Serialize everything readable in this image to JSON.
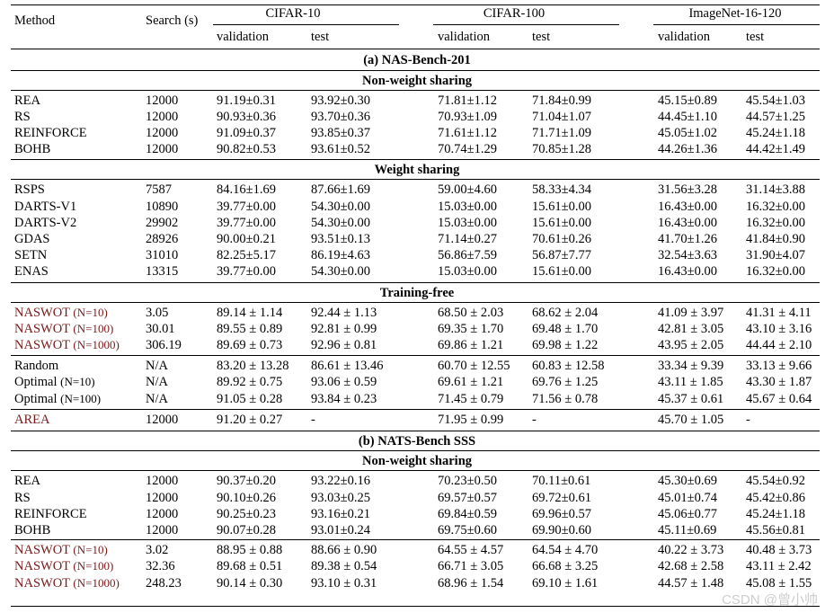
{
  "header": {
    "method": "Method",
    "search": "Search (s)",
    "datasets": [
      "CIFAR-10",
      "CIFAR-100",
      "ImageNet-16-120"
    ],
    "sub": [
      "validation",
      "test",
      "validation",
      "test",
      "validation",
      "test"
    ]
  },
  "sections": [
    {
      "title": "(a) NAS-Bench-201",
      "groups": [
        {
          "title": "Non-weight sharing",
          "rows": [
            {
              "method": "REA",
              "search": "12000",
              "vals": [
                "91.19±0.31",
                "93.92±0.30",
                "71.81±1.12",
                "71.84±0.99",
                "45.15±0.89",
                "45.54±1.03"
              ]
            },
            {
              "method": "RS",
              "search": "12000",
              "vals": [
                "90.93±0.36",
                "93.70±0.36",
                "70.93±1.09",
                "71.04±1.07",
                "44.45±1.10",
                "44.57±1.25"
              ]
            },
            {
              "method": "REINFORCE",
              "search": "12000",
              "vals": [
                "91.09±0.37",
                "93.85±0.37",
                "71.61±1.12",
                "71.71±1.09",
                "45.05±1.02",
                "45.24±1.18"
              ]
            },
            {
              "method": "BOHB",
              "search": "12000",
              "vals": [
                "90.82±0.53",
                "93.61±0.52",
                "70.74±1.29",
                "70.85±1.28",
                "44.26±1.36",
                "44.42±1.49"
              ]
            }
          ]
        },
        {
          "title": "Weight sharing",
          "rows": [
            {
              "method": "RSPS",
              "search": "7587",
              "vals": [
                "84.16±1.69",
                "87.66±1.69",
                "59.00±4.60",
                "58.33±4.34",
                "31.56±3.28",
                "31.14±3.88"
              ]
            },
            {
              "method": "DARTS-V1",
              "search": "10890",
              "vals": [
                "39.77±0.00",
                "54.30±0.00",
                "15.03±0.00",
                "15.61±0.00",
                "16.43±0.00",
                "16.32±0.00"
              ]
            },
            {
              "method": "DARTS-V2",
              "search": "29902",
              "vals": [
                "39.77±0.00",
                "54.30±0.00",
                "15.03±0.00",
                "15.61±0.00",
                "16.43±0.00",
                "16.32±0.00"
              ]
            },
            {
              "method": "GDAS",
              "search": "28926",
              "vals": [
                "90.00±0.21",
                "93.51±0.13",
                "71.14±0.27",
                "70.61±0.26",
                "41.70±1.26",
                "41.84±0.90"
              ]
            },
            {
              "method": "SETN",
              "search": "31010",
              "vals": [
                "82.25±5.17",
                "86.19±4.63",
                "56.86±7.59",
                "56.87±7.77",
                "32.54±3.63",
                "31.90±4.07"
              ]
            },
            {
              "method": "ENAS",
              "search": "13315",
              "vals": [
                "39.77±0.00",
                "54.30±0.00",
                "15.03±0.00",
                "15.61±0.00",
                "16.43±0.00",
                "16.32±0.00"
              ]
            }
          ]
        },
        {
          "title": "Training-free",
          "rows": [
            {
              "method": "NASWOT",
              "arg": "(N=10)",
              "search": "3.05",
              "vals": [
                "89.14 ± 1.14",
                "92.44 ± 1.13",
                "68.50 ± 2.03",
                "68.62 ± 2.04",
                "41.09 ± 3.97",
                "41.31 ± 4.11"
              ]
            },
            {
              "method": "NASWOT",
              "arg": "(N=100)",
              "search": "30.01",
              "vals": [
                "89.55 ± 0.89",
                "92.81 ± 0.99",
                "69.35 ± 1.70",
                "69.48 ± 1.70",
                "42.81 ± 3.05",
                "43.10 ± 3.16"
              ]
            },
            {
              "method": "NASWOT",
              "arg": "(N=1000)",
              "search": "306.19",
              "vals": [
                "89.69 ± 0.73",
                "92.96 ± 0.81",
                "69.86 ± 1.21",
                "69.98 ± 1.22",
                "43.95 ± 2.05",
                "44.44 ± 2.10"
              ]
            }
          ]
        },
        {
          "title": "",
          "rows": [
            {
              "method": "Random",
              "search": "N/A",
              "vals": [
                "83.20 ± 13.28",
                "86.61 ± 13.46",
                "60.70 ± 12.55",
                "60.83 ± 12.58",
                "33.34 ± 9.39",
                "33.13 ± 9.66"
              ]
            },
            {
              "method": "Optimal",
              "arg": "(N=10)",
              "search": "N/A",
              "vals": [
                "89.92 ± 0.75",
                "93.06 ± 0.59",
                "69.61 ± 1.21",
                "69.76 ± 1.25",
                "43.11 ± 1.85",
                "43.30 ± 1.87"
              ]
            },
            {
              "method": "Optimal",
              "arg": "(N=100)",
              "search": "N/A",
              "vals": [
                "91.05 ± 0.28",
                "93.84 ± 0.23",
                "71.45 ± 0.79",
                "71.56 ± 0.78",
                "45.37 ± 0.61",
                "45.67 ± 0.64"
              ]
            }
          ]
        },
        {
          "title": "",
          "rows": [
            {
              "method": "AREA",
              "search": "12000",
              "vals": [
                "91.20 ± 0.27",
                "-",
                "71.95 ± 0.99",
                "-",
                "45.70 ± 1.05",
                "-"
              ]
            }
          ]
        }
      ]
    },
    {
      "title": "(b) NATS-Bench SSS",
      "groups": [
        {
          "title": "Non-weight sharing",
          "rows": [
            {
              "method": "REA",
              "search": "12000",
              "vals": [
                "90.37±0.20",
                "93.22±0.16",
                "70.23±0.50",
                "70.11±0.61",
                "45.30±0.69",
                "45.54±0.92"
              ]
            },
            {
              "method": "RS",
              "search": "12000",
              "vals": [
                "90.10±0.26",
                "93.03±0.25",
                "69.57±0.57",
                "69.72±0.61",
                "45.01±0.74",
                "45.42±0.86"
              ]
            },
            {
              "method": "REINFORCE",
              "search": "12000",
              "vals": [
                "90.25±0.23",
                "93.16±0.21",
                "69.84±0.59",
                "69.96±0.57",
                "45.06±0.77",
                "45.24±1.18"
              ]
            },
            {
              "method": "BOHB",
              "search": "12000",
              "vals": [
                "90.07±0.28",
                "93.01±0.24",
                "69.75±0.60",
                "69.90±0.60",
                "45.11±0.69",
                "45.56±0.81"
              ]
            }
          ]
        },
        {
          "title": "",
          "rows": [
            {
              "method": "NASWOT",
              "arg": "(N=10)",
              "search": "3.02",
              "vals": [
                "88.95 ± 0.88",
                "88.66 ± 0.90",
                "64.55 ± 4.57",
                "64.54 ± 4.70",
                "40.22 ± 3.73",
                "40.48 ± 3.73"
              ]
            },
            {
              "method": "NASWOT",
              "arg": "(N=100)",
              "search": "32.36",
              "vals": [
                "89.68 ± 0.51",
                "89.38 ± 0.54",
                "66.71 ± 3.05",
                "66.68 ± 3.25",
                "42.68 ± 2.58",
                "43.11 ± 2.42"
              ]
            },
            {
              "method": "NASWOT",
              "arg": "(N=1000)",
              "search": "248.23",
              "vals": [
                "90.14 ± 0.30",
                "93.10 ± 0.31",
                "68.96 ± 1.54",
                "69.10 ± 1.61",
                "44.57 ± 1.48",
                "45.08 ± 1.55"
              ]
            }
          ]
        }
      ]
    }
  ],
  "watermark": "CSDN @曾小帅"
}
